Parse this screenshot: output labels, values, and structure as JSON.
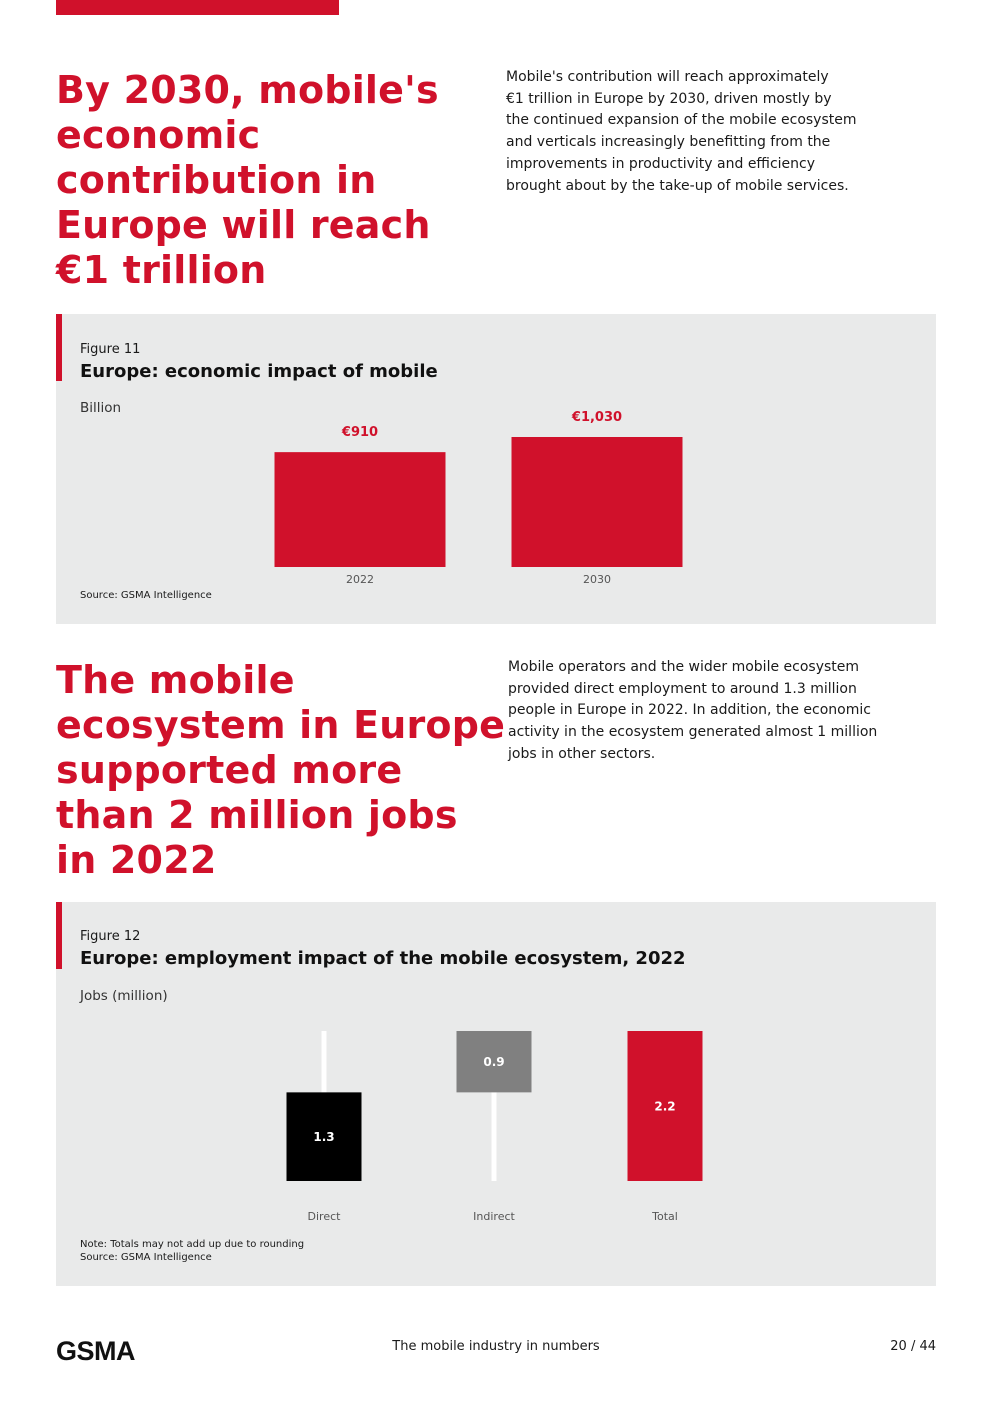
{
  "section1": {
    "headline_lines": [
      "By 2030, mobile's",
      "economic",
      "contribution in",
      "Europe will reach",
      "€1 trillion"
    ],
    "body_lines": [
      "Mobile's contribution will reach approximately",
      "€1 trillion in Europe by 2030, driven mostly by",
      "the continued expansion of the mobile ecosystem",
      "and verticals increasingly benefitting from the",
      "improvements in productivity and efficiency",
      "brought about by the take-up of mobile services."
    ]
  },
  "figure11": {
    "number": "Figure 11",
    "title": "Europe: economic impact of mobile",
    "unit": "Billion",
    "source": "Source: GSMA Intelligence"
  },
  "section2": {
    "headline_lines": [
      "The mobile",
      "ecosystem in Europe",
      "supported more",
      "than 2 million jobs",
      "in 2022"
    ],
    "body_lines": [
      "Mobile operators and the wider mobile ecosystem",
      "provided direct employment to around 1.3 million",
      "people in Europe in 2022. In addition, the economic",
      "activity in the ecosystem generated almost 1 million",
      "jobs in other sectors."
    ]
  },
  "figure12": {
    "number": "Figure 12",
    "title": "Europe: employment impact of the mobile ecosystem, 2022",
    "unit": "Jobs (million)",
    "note": "Note: Totals may not add up due to rounding",
    "source": "Source: GSMA Intelligence"
  },
  "footer": {
    "logo_text": "GSMA",
    "center_text": "The mobile industry in numbers",
    "page": "20 / 44"
  },
  "chart_data": [
    {
      "type": "bar",
      "title": "Europe: economic impact of mobile",
      "ylabel": "Billion",
      "categories": [
        "2022",
        "2030"
      ],
      "values": [
        910,
        1030
      ],
      "value_labels": [
        "€910",
        "€1,030"
      ],
      "ylim": [
        0,
        1030
      ],
      "colors": [
        "#d0112b",
        "#d0112b"
      ],
      "label_color": "#d0112b"
    },
    {
      "type": "bar",
      "subtype": "waterfall",
      "title": "Europe: employment impact of the mobile ecosystem, 2022",
      "ylabel": "Jobs (million)",
      "categories": [
        "Direct",
        "Indirect",
        "Total"
      ],
      "values": [
        1.3,
        0.9,
        2.2
      ],
      "value_labels": [
        "1.3",
        "0.9",
        "2.2"
      ],
      "ylim": [
        0,
        2.2
      ],
      "colors": [
        "#000000",
        "#808080",
        "#d0112b"
      ]
    }
  ]
}
